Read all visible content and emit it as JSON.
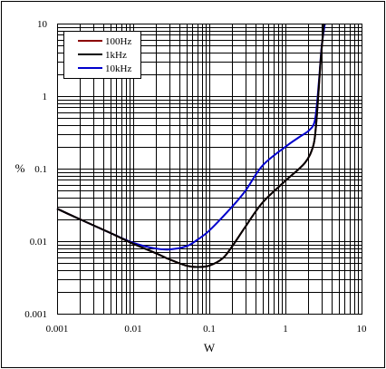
{
  "chart_data": {
    "type": "line",
    "xlabel": "W",
    "ylabel": "%",
    "xscale": "log",
    "yscale": "log",
    "xlim": [
      0.001,
      10
    ],
    "ylim": [
      0.001,
      10
    ],
    "xticks": [
      {
        "value": 0.001,
        "label": "0.001"
      },
      {
        "value": 0.01,
        "label": "0.01"
      },
      {
        "value": 0.1,
        "label": "0.1"
      },
      {
        "value": 1,
        "label": "1"
      },
      {
        "value": 10,
        "label": "10"
      }
    ],
    "yticks": [
      {
        "value": 0.001,
        "label": "0.001"
      },
      {
        "value": 0.01,
        "label": "0.01"
      },
      {
        "value": 0.1,
        "label": "0.1"
      },
      {
        "value": 1,
        "label": "1"
      },
      {
        "value": 10,
        "label": "10"
      }
    ],
    "grid": true,
    "legend_position": "top-left",
    "series": [
      {
        "name": "100Hz",
        "color": "#8b0000",
        "points": [
          [
            0.001,
            0.028
          ],
          [
            0.002,
            0.02
          ],
          [
            0.005,
            0.013
          ],
          [
            0.01,
            0.0092
          ],
          [
            0.02,
            0.0068
          ],
          [
            0.03,
            0.0056
          ],
          [
            0.05,
            0.0046
          ],
          [
            0.07,
            0.0044
          ],
          [
            0.1,
            0.0046
          ],
          [
            0.15,
            0.0058
          ],
          [
            0.2,
            0.0085
          ],
          [
            0.3,
            0.016
          ],
          [
            0.5,
            0.034
          ],
          [
            1,
            0.068
          ],
          [
            1.8,
            0.12
          ],
          [
            2.3,
            0.2
          ],
          [
            2.5,
            0.35
          ],
          [
            2.7,
            1.0
          ],
          [
            2.9,
            3.0
          ],
          [
            3.2,
            10
          ]
        ]
      },
      {
        "name": "1kHz",
        "color": "#000000",
        "points": [
          [
            0.001,
            0.028
          ],
          [
            0.002,
            0.02
          ],
          [
            0.005,
            0.013
          ],
          [
            0.01,
            0.0092
          ],
          [
            0.02,
            0.0068
          ],
          [
            0.03,
            0.0056
          ],
          [
            0.05,
            0.0046
          ],
          [
            0.07,
            0.0044
          ],
          [
            0.1,
            0.0046
          ],
          [
            0.15,
            0.0058
          ],
          [
            0.2,
            0.0085
          ],
          [
            0.3,
            0.016
          ],
          [
            0.5,
            0.034
          ],
          [
            1,
            0.068
          ],
          [
            1.8,
            0.12
          ],
          [
            2.3,
            0.2
          ],
          [
            2.5,
            0.35
          ],
          [
            2.7,
            1.0
          ],
          [
            2.9,
            3.0
          ],
          [
            3.2,
            10
          ]
        ]
      },
      {
        "name": "10kHz",
        "color": "#0000cc",
        "points": [
          [
            0.001,
            0.028
          ],
          [
            0.002,
            0.02
          ],
          [
            0.005,
            0.013
          ],
          [
            0.01,
            0.0095
          ],
          [
            0.02,
            0.0079
          ],
          [
            0.03,
            0.0077
          ],
          [
            0.05,
            0.0085
          ],
          [
            0.07,
            0.0105
          ],
          [
            0.1,
            0.014
          ],
          [
            0.2,
            0.03
          ],
          [
            0.3,
            0.05
          ],
          [
            0.5,
            0.11
          ],
          [
            1,
            0.2
          ],
          [
            1.5,
            0.27
          ],
          [
            2,
            0.33
          ],
          [
            2.4,
            0.43
          ],
          [
            2.6,
            0.8
          ],
          [
            2.8,
            2.0
          ],
          [
            3.0,
            5.0
          ],
          [
            3.3,
            10
          ]
        ]
      }
    ]
  }
}
